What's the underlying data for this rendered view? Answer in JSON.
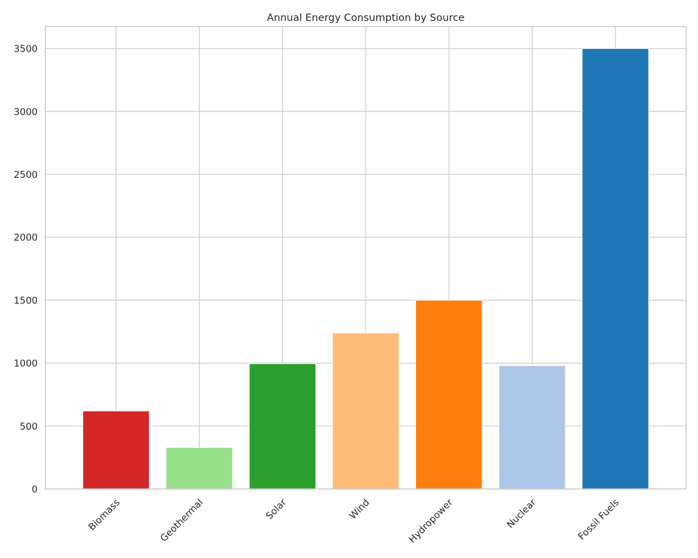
{
  "chart_data": {
    "type": "bar",
    "title": "Annual Energy Consumption by Source",
    "xlabel": "",
    "ylabel": "",
    "categories": [
      "Biomass",
      "Geothermal",
      "Solar",
      "Wind",
      "Hydropower",
      "Nuclear",
      "Fossil Fuels"
    ],
    "values": [
      620,
      330,
      995,
      1240,
      1500,
      980,
      3500
    ],
    "colors": [
      "#d62728",
      "#98df8a",
      "#2ca02c",
      "#ffbb78",
      "#ff7f0e",
      "#aec7e8",
      "#1f77b4"
    ],
    "ylim": [
      0,
      3675
    ],
    "yticks": [
      0,
      500,
      1000,
      1500,
      2000,
      2500,
      3000,
      3500
    ],
    "grid": true,
    "legend": "none"
  }
}
